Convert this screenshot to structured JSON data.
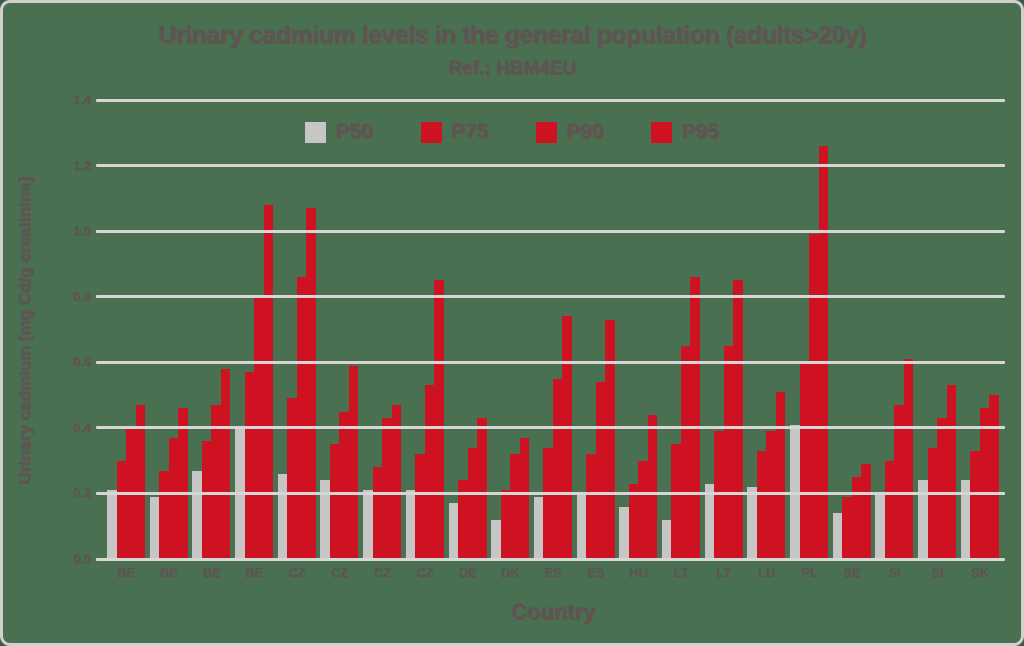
{
  "colors": {
    "background": "#4a7052",
    "frame_border": "#d2d0cc",
    "gridline": "#d7d6d4",
    "text": "#575757",
    "text_shadow_red": "#b9141e",
    "bar_gray": "#c6c6c6",
    "bar_red": "#ce1221"
  },
  "chart_data": {
    "type": "bar",
    "title": "Urinary cadmium levels in the general population (adults>20y)",
    "subtitle": "Ref.: HBM4EU",
    "xlabel": "Country",
    "ylabel": "Urinary cadmium [mg Cd/g creatinine]",
    "ylim": [
      0,
      1.4
    ],
    "yticks": [
      0.0,
      0.2,
      0.4,
      0.6,
      0.8,
      1.0,
      1.2,
      1.4
    ],
    "grid": "horizontal, drawn over bars",
    "legend_position": "top-center inside plot",
    "categories": [
      "BE",
      "BE",
      "BE",
      "BE",
      "CZ",
      "CZ",
      "CZ",
      "CZ",
      "DE",
      "DK",
      "ES",
      "ES",
      "HU",
      "LT",
      "LT",
      "LU",
      "PL",
      "SE",
      "SI",
      "SI",
      "SK"
    ],
    "series": [
      {
        "name": "P50",
        "color": "#c6c6c6",
        "values": [
          0.21,
          0.19,
          0.27,
          0.4,
          0.26,
          0.24,
          0.21,
          0.21,
          0.17,
          0.12,
          0.19,
          0.2,
          0.16,
          0.12,
          0.23,
          0.22,
          0.41,
          0.14,
          0.2,
          0.24,
          0.24
        ]
      },
      {
        "name": "P75",
        "color": "#ce1221",
        "values": [
          0.3,
          0.27,
          0.36,
          0.57,
          0.49,
          0.35,
          0.28,
          0.32,
          0.24,
          0.21,
          0.34,
          0.32,
          0.23,
          0.35,
          0.39,
          0.33,
          0.6,
          0.19,
          0.3,
          0.34,
          0.33
        ]
      },
      {
        "name": "P90",
        "color": "#ce1221",
        "values": [
          0.4,
          0.37,
          0.47,
          0.8,
          0.86,
          0.45,
          0.43,
          0.53,
          0.34,
          0.32,
          0.55,
          0.54,
          0.3,
          0.65,
          0.65,
          0.39,
          0.99,
          0.25,
          0.47,
          0.43,
          0.46
        ]
      },
      {
        "name": "P95",
        "color": "#ce1221",
        "values": [
          0.47,
          0.46,
          0.58,
          1.08,
          1.07,
          0.59,
          0.47,
          0.85,
          0.43,
          0.37,
          0.74,
          0.73,
          0.44,
          0.86,
          0.85,
          0.51,
          1.26,
          0.29,
          0.61,
          0.53,
          0.5
        ]
      }
    ]
  }
}
